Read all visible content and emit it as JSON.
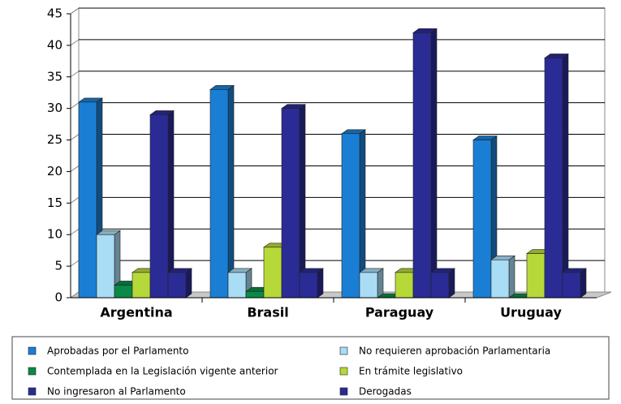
{
  "chart_data": {
    "type": "bar3d",
    "categories": [
      "Argentina",
      "Brasil",
      "Paraguay",
      "Uruguay"
    ],
    "series": [
      {
        "name": "Aprobadas por el Parlamento",
        "color": "#1a7fd4",
        "values": [
          31,
          33,
          26,
          25
        ]
      },
      {
        "name": "No requieren aprobación Parlamentaria",
        "color": "#a9dcf5",
        "values": [
          10,
          4,
          4,
          6
        ]
      },
      {
        "name": "Contemplada en la Legislación vigente anterior",
        "color": "#0a8a46",
        "values": [
          2,
          1,
          0,
          0
        ]
      },
      {
        "name": "En trámite legislativo",
        "color": "#b7d839",
        "values": [
          4,
          8,
          4,
          7
        ]
      },
      {
        "name": "No ingresaron al Parlamento",
        "color": "#2b2b96",
        "values": [
          29,
          30,
          42,
          38
        ]
      },
      {
        "name": "Derogadas",
        "color": "#2b2b96",
        "values": [
          4,
          4,
          4,
          4
        ]
      }
    ],
    "ylim": [
      0,
      45
    ],
    "yticks": [
      0,
      5,
      10,
      15,
      20,
      25,
      30,
      35,
      40,
      45
    ],
    "grid": true,
    "legend": "bottom"
  }
}
